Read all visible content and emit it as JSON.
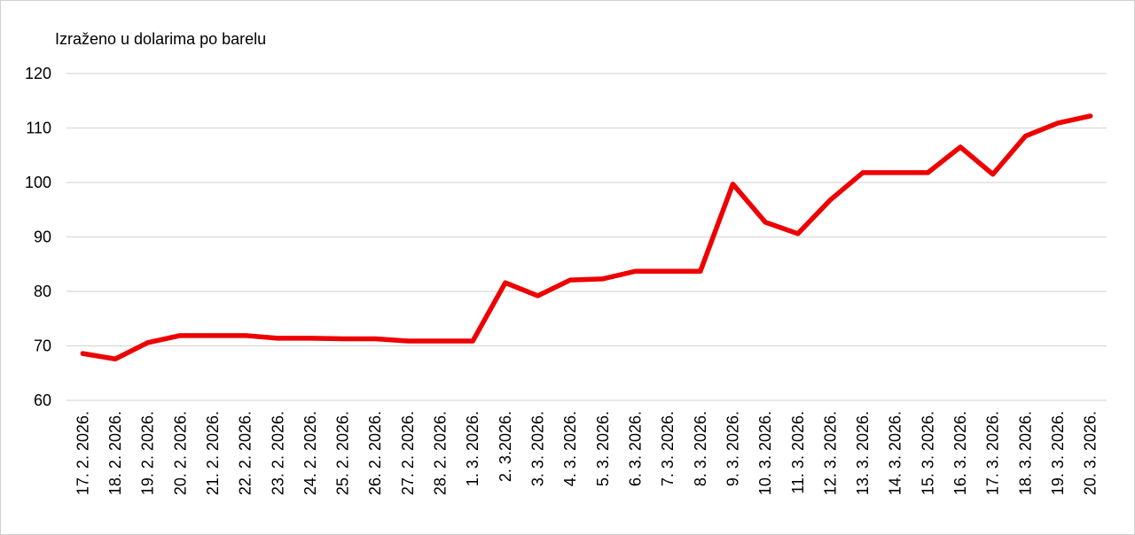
{
  "chart_data": {
    "type": "line",
    "y_label": "Izraženo u dolarima po barelu",
    "categories": [
      "17. 2. 2026.",
      "18. 2. 2026.",
      "19. 2. 2026.",
      "20. 2. 2026.",
      "21. 2. 2026.",
      "22. 2. 2026.",
      "23. 2. 2026.",
      "24. 2. 2026.",
      "25. 2. 2026.",
      "26. 2. 2026.",
      "27. 2. 2026.",
      "28. 2. 2026.",
      "1. 3. 2026.",
      "2. 3.2026.",
      "3. 3. 2026.",
      "4. 3. 2026.",
      "5. 3. 2026.",
      "6. 3. 2026.",
      "7. 3. 2026.",
      "8. 3. 2026.",
      "9. 3. 2026.",
      "10. 3. 2026.",
      "11. 3. 2026.",
      "12. 3. 2026.",
      "13. 3. 2026.",
      "14. 3. 2026.",
      "15. 3. 2026.",
      "16. 3. 2026.",
      "17. 3. 2026.",
      "18. 3. 2026.",
      "19. 3. 2026.",
      "20. 3. 2026."
    ],
    "values": [
      68.6,
      67.6,
      70.6,
      71.9,
      71.9,
      71.9,
      71.4,
      71.4,
      71.3,
      71.3,
      70.9,
      70.9,
      70.9,
      81.6,
      79.2,
      82.1,
      82.3,
      83.7,
      83.7,
      83.7,
      99.7,
      92.7,
      90.6,
      96.8,
      101.8,
      101.8,
      101.8,
      106.5,
      101.5,
      108.5,
      110.9,
      112.2
    ],
    "color": "#ee0000",
    "ylim": [
      60,
      120
    ],
    "yticks": [
      60,
      70,
      80,
      90,
      100,
      110,
      120
    ],
    "grid": true
  }
}
